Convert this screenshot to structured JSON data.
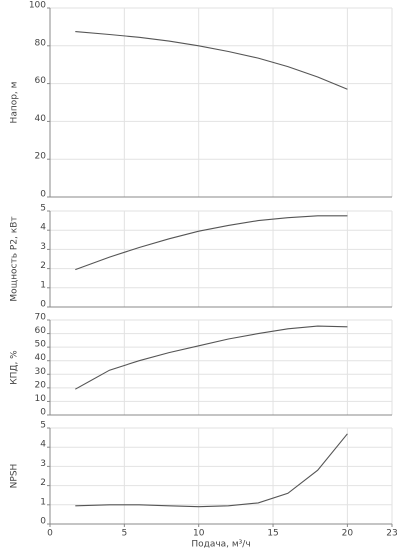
{
  "chart_data": [
    {
      "type": "line",
      "y_label": "Напор, м",
      "color": "#555555",
      "grid": true,
      "x": [
        1.7,
        4,
        6,
        8,
        10,
        12,
        14,
        16,
        18,
        20
      ],
      "values": [
        87.5,
        86,
        84.5,
        82.5,
        80,
        77,
        73.5,
        69,
        63.5,
        57
      ],
      "xlim": [
        0,
        23
      ],
      "xticks": [
        0,
        5,
        10,
        15,
        20,
        23
      ],
      "ylim": [
        0,
        100
      ],
      "yticks": [
        0,
        20,
        40,
        60,
        80,
        100
      ]
    },
    {
      "type": "line",
      "y_label": "Мощность P2, кВт",
      "color": "#555555",
      "grid": true,
      "x": [
        1.7,
        4,
        6,
        8,
        10,
        12,
        14,
        16,
        18,
        20
      ],
      "values": [
        1.95,
        2.6,
        3.1,
        3.55,
        3.95,
        4.25,
        4.5,
        4.65,
        4.75,
        4.75
      ],
      "xlim": [
        0,
        23
      ],
      "xticks": [
        0,
        5,
        10,
        15,
        20,
        23
      ],
      "ylim": [
        0,
        5
      ],
      "yticks": [
        0,
        1,
        2,
        3,
        4,
        5
      ]
    },
    {
      "type": "line",
      "y_label": "КПД, %",
      "color": "#555555",
      "grid": true,
      "x": [
        1.7,
        4,
        6,
        8,
        10,
        12,
        14,
        16,
        18,
        20
      ],
      "values": [
        19,
        33,
        40,
        46,
        51,
        56,
        60,
        63.5,
        65.5,
        65
      ],
      "xlim": [
        0,
        23
      ],
      "xticks": [
        0,
        5,
        10,
        15,
        20,
        23
      ],
      "ylim": [
        0,
        70
      ],
      "yticks": [
        0,
        10,
        20,
        30,
        40,
        50,
        60,
        70
      ]
    },
    {
      "type": "line",
      "y_label": "NPSH",
      "x_label": "Подача, м³/ч",
      "color": "#555555",
      "grid": true,
      "x": [
        1.7,
        4,
        6,
        8,
        10,
        12,
        14,
        16,
        18,
        20
      ],
      "values": [
        0.95,
        1.0,
        1.0,
        0.95,
        0.9,
        0.95,
        1.1,
        1.6,
        2.8,
        4.7
      ],
      "xlim": [
        0,
        23
      ],
      "xticks": [
        0,
        5,
        10,
        15,
        20,
        23
      ],
      "ylim": [
        0,
        5
      ],
      "yticks": [
        0,
        1,
        2,
        3,
        4,
        5
      ]
    }
  ]
}
